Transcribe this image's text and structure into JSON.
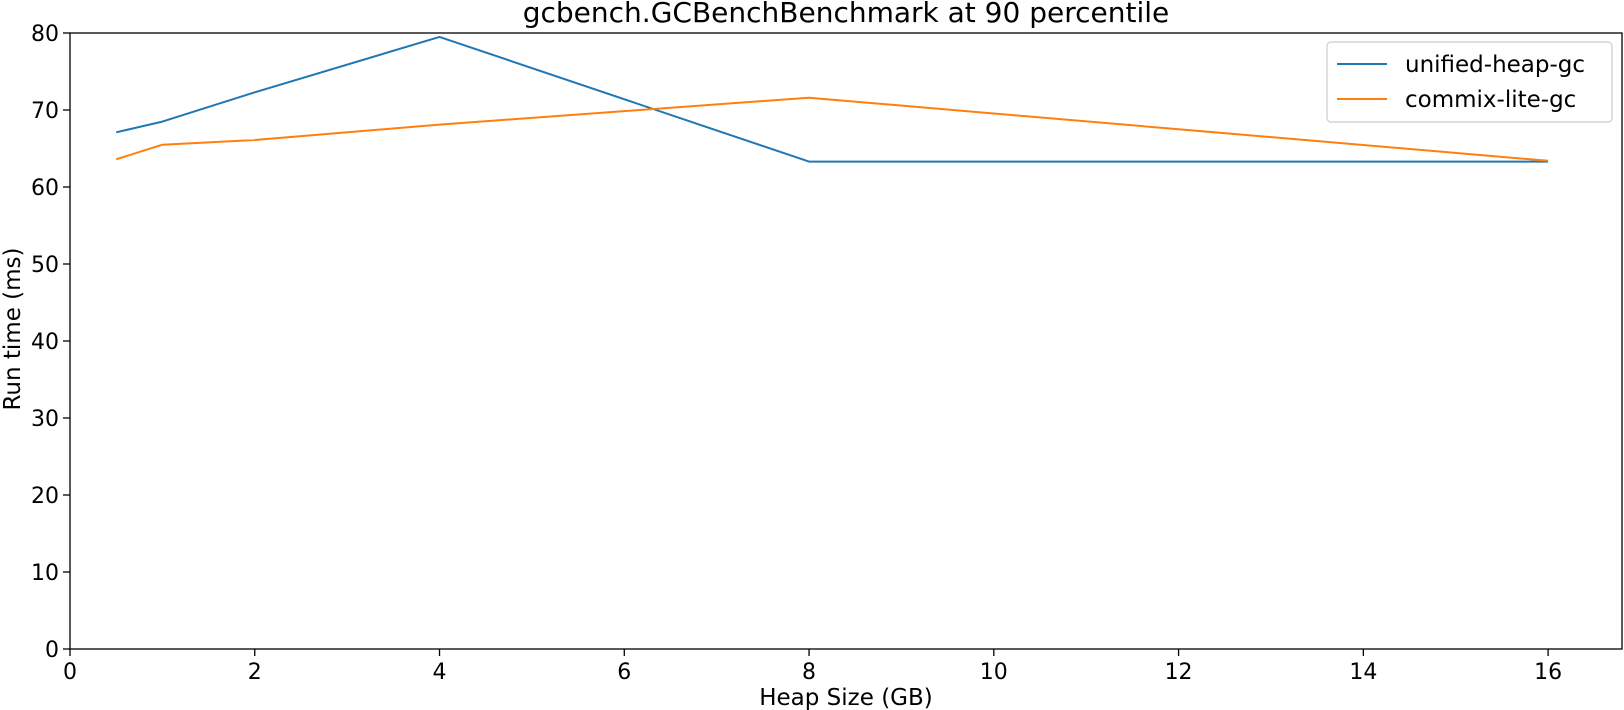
{
  "chart_data": {
    "type": "line",
    "title": "gcbench.GCBenchBenchmark at 90 percentile",
    "xlabel": "Heap Size (GB)",
    "ylabel": "Run time (ms)",
    "xlim": [
      0,
      16.8
    ],
    "ylim": [
      0,
      80
    ],
    "xticks": [
      0,
      2,
      4,
      6,
      8,
      10,
      12,
      14,
      16
    ],
    "yticks": [
      0,
      10,
      20,
      30,
      40,
      50,
      60,
      70,
      80
    ],
    "grid": false,
    "legend_position": "top-right",
    "x": [
      0.5,
      1,
      2,
      4,
      8,
      16
    ],
    "series": [
      {
        "name": "unified-heap-gc",
        "color": "#1f77b4",
        "values": [
          67.1,
          68.5,
          72.3,
          79.5,
          63.3,
          63.3
        ]
      },
      {
        "name": "commix-lite-gc",
        "color": "#ff7f0e",
        "values": [
          63.6,
          65.5,
          66.1,
          68.1,
          71.6,
          63.4
        ]
      }
    ]
  }
}
